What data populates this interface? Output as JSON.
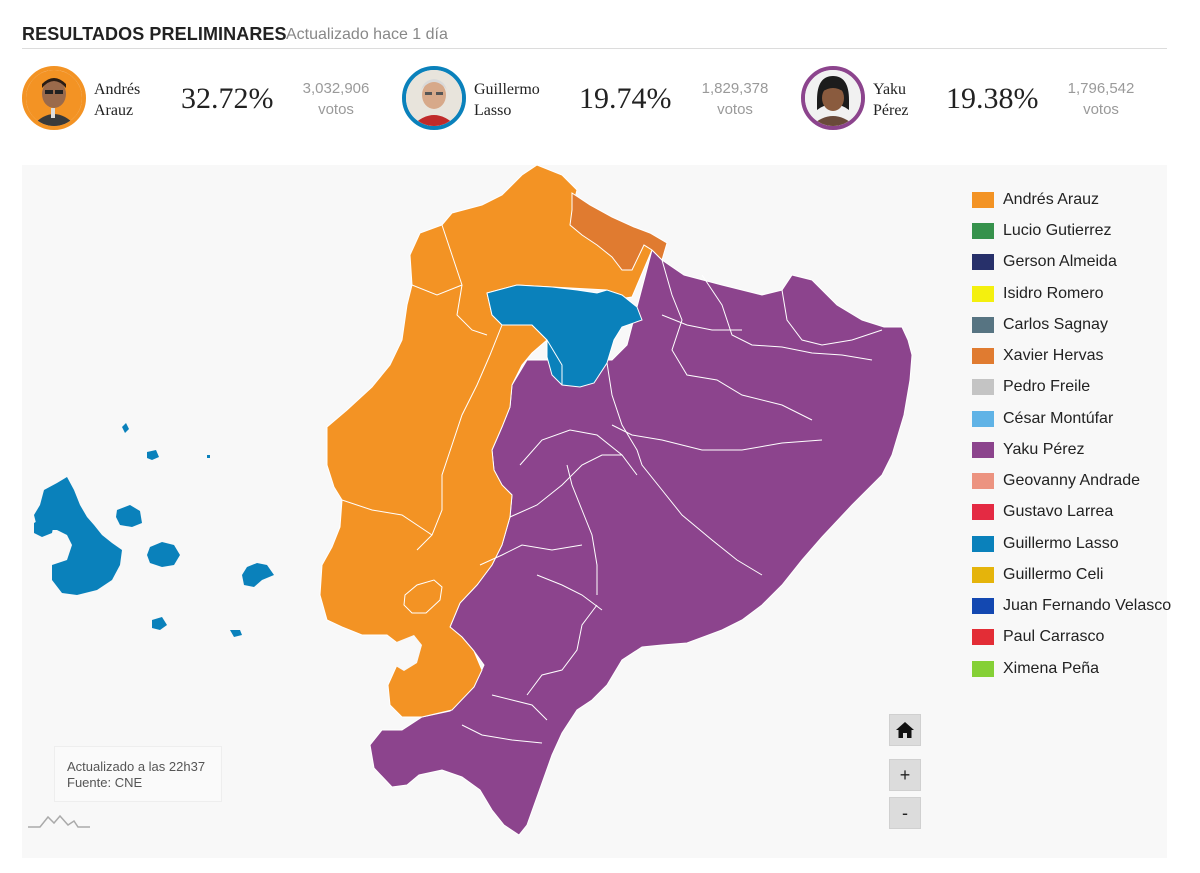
{
  "header": {
    "title": "RESULTADOS PRELIMINARES",
    "updated": "Actualizado hace 1 día"
  },
  "candidates": [
    {
      "first": "Andrés",
      "last": "Arauz",
      "percent": "32.72%",
      "votes": "3,032,906",
      "votes_unit": "votos",
      "color": "#f39324"
    },
    {
      "first": "Guillermo",
      "last": "Lasso",
      "percent": "19.74%",
      "votes": "1,829,378",
      "votes_unit": "votos",
      "color": "#0a81bb"
    },
    {
      "first": "Yaku",
      "last": "Pérez",
      "percent": "19.38%",
      "votes": "1,796,542",
      "votes_unit": "votos",
      "color": "#8c448d"
    }
  ],
  "legend": [
    {
      "label": "Andrés Arauz",
      "color": "#f39324"
    },
    {
      "label": "Lucio Gutierrez",
      "color": "#36924c"
    },
    {
      "label": "Gerson Almeida",
      "color": "#27306a"
    },
    {
      "label": "Isidro Romero",
      "color": "#f4f00e"
    },
    {
      "label": "Carlos Sagnay",
      "color": "#577482"
    },
    {
      "label": "Xavier Hervas",
      "color": "#e07b30"
    },
    {
      "label": "Pedro Freile",
      "color": "#c4c4c4"
    },
    {
      "label": "César Montúfar",
      "color": "#60b3e6"
    },
    {
      "label": "Yaku Pérez",
      "color": "#8c448d"
    },
    {
      "label": "Geovanny Andrade",
      "color": "#ec9380"
    },
    {
      "label": "Gustavo Larrea",
      "color": "#e42a43"
    },
    {
      "label": "Guillermo Lasso",
      "color": "#0a81bb"
    },
    {
      "label": "Guillermo Celi",
      "color": "#e5b40b"
    },
    {
      "label": "Juan Fernando Velasco",
      "color": "#1348b1"
    },
    {
      "label": "Paul Carrasco",
      "color": "#e32d36"
    },
    {
      "label": "Ximena Peña",
      "color": "#85d036"
    }
  ],
  "controls": {
    "home_icon": "home-icon",
    "zoom_in": "+",
    "zoom_out": "-"
  },
  "footer": {
    "updated": "Actualizado a las 22h37",
    "source": "Fuente: CNE"
  }
}
